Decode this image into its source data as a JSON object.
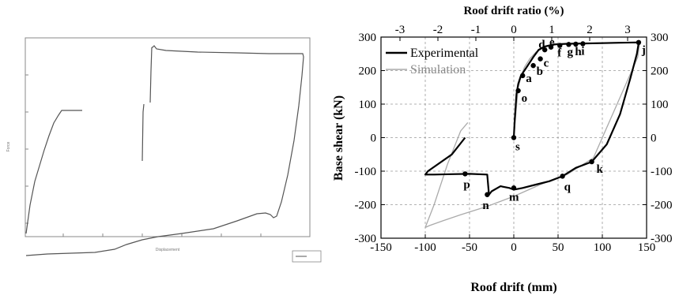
{
  "chart_data": [
    {
      "type": "line",
      "title": "",
      "xlabel": "Displacement",
      "ylabel": "Force",
      "legend": {
        "placement": "bottom-right",
        "entries": [
          ""
        ]
      },
      "grid": false,
      "series": [
        {
          "name": "",
          "color": "#555555"
        }
      ]
    },
    {
      "type": "line",
      "title": "",
      "xlabel": "Roof drift (mm)",
      "x2label": "Roof drift ratio (%)",
      "ylabel": "Base shear (kN)",
      "xlim": [
        -150,
        150
      ],
      "ylim": [
        -300,
        300
      ],
      "x2lim": [
        -3.5,
        3.5
      ],
      "xticks": [
        "-150",
        "-100",
        "-50",
        "0",
        "50",
        "100",
        "150"
      ],
      "x2ticks": [
        "-3",
        "-2",
        "-1",
        "0",
        "1",
        "2",
        "3"
      ],
      "yticks": [
        "-300",
        "-200",
        "-100",
        "0",
        "100",
        "200",
        "300"
      ],
      "grid": true,
      "legend": {
        "placement": "top-left"
      },
      "series": [
        {
          "name": "Experimental",
          "color": "#000000",
          "x": [
            0,
            1,
            3,
            5,
            8,
            12,
            17,
            22,
            28,
            35,
            45,
            60,
            78,
            100,
            120,
            140,
            141,
            139,
            132,
            120,
            105,
            88,
            70,
            55,
            40,
            25,
            10,
            0,
            -5,
            -15,
            -25,
            -28,
            -30,
            -50,
            -70,
            -90,
            -100,
            -97,
            -70,
            -55
          ],
          "y": [
            0,
            50,
            130,
            160,
            185,
            200,
            220,
            240,
            262,
            272,
            278,
            280,
            281,
            282,
            283,
            284,
            281,
            250,
            180,
            70,
            -20,
            -72,
            -90,
            -115,
            -130,
            -140,
            -150,
            -155,
            -150,
            -145,
            -160,
            -170,
            -110,
            -108,
            -109,
            -110,
            -110,
            -100,
            -50,
            0
          ]
        },
        {
          "name": "Simulation",
          "color": "#aaaaaa",
          "x": [
            0,
            2,
            5,
            8,
            12,
            18,
            25,
            35,
            50,
            70,
            100,
            140,
            142,
            140,
            120,
            90,
            60,
            30,
            0,
            -30,
            -60,
            -80,
            -95,
            -100,
            -90,
            -75,
            -60,
            -52
          ],
          "y": [
            0,
            60,
            150,
            180,
            210,
            235,
            255,
            270,
            278,
            280,
            283,
            285,
            280,
            240,
            120,
            -60,
            -110,
            -140,
            -175,
            -205,
            -230,
            -248,
            -262,
            -268,
            -200,
            -80,
            20,
            45
          ]
        }
      ],
      "annotations": [
        {
          "label": "s",
          "x": 0,
          "y": 0
        },
        {
          "label": "o",
          "x": 5,
          "y": 140
        },
        {
          "label": "a",
          "x": 10,
          "y": 185
        },
        {
          "label": "b",
          "x": 22,
          "y": 215
        },
        {
          "label": "c",
          "x": 30,
          "y": 235
        },
        {
          "label": "d",
          "x": 35,
          "y": 262
        },
        {
          "label": "e",
          "x": 42,
          "y": 270
        },
        {
          "label": "f",
          "x": 52,
          "y": 275
        },
        {
          "label": "g",
          "x": 62,
          "y": 278
        },
        {
          "label": "h",
          "x": 70,
          "y": 279
        },
        {
          "label": "i",
          "x": 78,
          "y": 280
        },
        {
          "label": "j",
          "x": 141,
          "y": 284
        },
        {
          "label": "k",
          "x": 88,
          "y": -72
        },
        {
          "label": "q",
          "x": 55,
          "y": -115
        },
        {
          "label": "m",
          "x": 0,
          "y": -150
        },
        {
          "label": "n",
          "x": -30,
          "y": -170
        },
        {
          "label": "p",
          "x": -55,
          "y": -108
        }
      ]
    }
  ]
}
